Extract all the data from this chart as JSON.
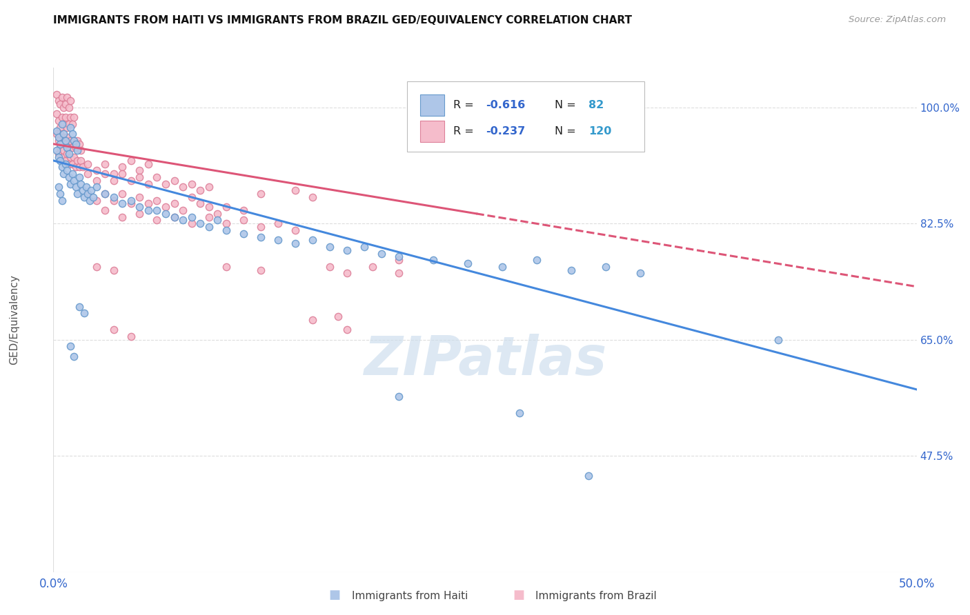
{
  "title": "IMMIGRANTS FROM HAITI VS IMMIGRANTS FROM BRAZIL GED/EQUIVALENCY CORRELATION CHART",
  "source": "Source: ZipAtlas.com",
  "ylabel": "GED/Equivalency",
  "ytick_labels": [
    "100.0%",
    "82.5%",
    "65.0%",
    "47.5%"
  ],
  "ytick_values": [
    1.0,
    0.825,
    0.65,
    0.475
  ],
  "xmin": 0.0,
  "xmax": 0.5,
  "ymin": 0.3,
  "ymax": 1.06,
  "haiti_color": "#aec6e8",
  "haiti_edge_color": "#6699cc",
  "brazil_color": "#f5bccb",
  "brazil_edge_color": "#dd8099",
  "haiti_line_color": "#4488dd",
  "brazil_line_color": "#dd5577",
  "watermark_text": "ZIPatlas",
  "watermark_color": "#ccdded",
  "haiti_scatter": [
    [
      0.002,
      0.965
    ],
    [
      0.003,
      0.955
    ],
    [
      0.004,
      0.945
    ],
    [
      0.005,
      0.975
    ],
    [
      0.006,
      0.96
    ],
    [
      0.007,
      0.95
    ],
    [
      0.008,
      0.94
    ],
    [
      0.009,
      0.93
    ],
    [
      0.01,
      0.97
    ],
    [
      0.011,
      0.96
    ],
    [
      0.012,
      0.95
    ],
    [
      0.013,
      0.945
    ],
    [
      0.014,
      0.935
    ],
    [
      0.002,
      0.935
    ],
    [
      0.003,
      0.925
    ],
    [
      0.004,
      0.92
    ],
    [
      0.005,
      0.91
    ],
    [
      0.006,
      0.9
    ],
    [
      0.007,
      0.915
    ],
    [
      0.008,
      0.905
    ],
    [
      0.009,
      0.895
    ],
    [
      0.01,
      0.885
    ],
    [
      0.011,
      0.9
    ],
    [
      0.012,
      0.89
    ],
    [
      0.013,
      0.88
    ],
    [
      0.014,
      0.87
    ],
    [
      0.015,
      0.895
    ],
    [
      0.016,
      0.885
    ],
    [
      0.017,
      0.875
    ],
    [
      0.018,
      0.865
    ],
    [
      0.019,
      0.88
    ],
    [
      0.02,
      0.87
    ],
    [
      0.021,
      0.86
    ],
    [
      0.022,
      0.875
    ],
    [
      0.023,
      0.865
    ],
    [
      0.025,
      0.88
    ],
    [
      0.003,
      0.88
    ],
    [
      0.004,
      0.87
    ],
    [
      0.005,
      0.86
    ],
    [
      0.03,
      0.87
    ],
    [
      0.035,
      0.865
    ],
    [
      0.04,
      0.855
    ],
    [
      0.045,
      0.86
    ],
    [
      0.05,
      0.85
    ],
    [
      0.055,
      0.845
    ],
    [
      0.06,
      0.845
    ],
    [
      0.065,
      0.84
    ],
    [
      0.07,
      0.835
    ],
    [
      0.075,
      0.83
    ],
    [
      0.08,
      0.835
    ],
    [
      0.085,
      0.825
    ],
    [
      0.09,
      0.82
    ],
    [
      0.095,
      0.83
    ],
    [
      0.1,
      0.815
    ],
    [
      0.11,
      0.81
    ],
    [
      0.12,
      0.805
    ],
    [
      0.13,
      0.8
    ],
    [
      0.14,
      0.795
    ],
    [
      0.15,
      0.8
    ],
    [
      0.16,
      0.79
    ],
    [
      0.17,
      0.785
    ],
    [
      0.18,
      0.79
    ],
    [
      0.19,
      0.78
    ],
    [
      0.2,
      0.775
    ],
    [
      0.22,
      0.77
    ],
    [
      0.24,
      0.765
    ],
    [
      0.26,
      0.76
    ],
    [
      0.28,
      0.77
    ],
    [
      0.3,
      0.755
    ],
    [
      0.32,
      0.76
    ],
    [
      0.34,
      0.75
    ],
    [
      0.015,
      0.7
    ],
    [
      0.018,
      0.69
    ],
    [
      0.01,
      0.64
    ],
    [
      0.012,
      0.625
    ],
    [
      0.2,
      0.565
    ],
    [
      0.27,
      0.54
    ],
    [
      0.42,
      0.65
    ],
    [
      0.31,
      0.445
    ]
  ],
  "brazil_scatter": [
    [
      0.002,
      1.02
    ],
    [
      0.003,
      1.01
    ],
    [
      0.004,
      1.005
    ],
    [
      0.005,
      1.015
    ],
    [
      0.006,
      1.0
    ],
    [
      0.007,
      1.005
    ],
    [
      0.008,
      1.015
    ],
    [
      0.009,
      1.0
    ],
    [
      0.01,
      1.01
    ],
    [
      0.002,
      0.99
    ],
    [
      0.003,
      0.98
    ],
    [
      0.004,
      0.97
    ],
    [
      0.005,
      0.985
    ],
    [
      0.006,
      0.975
    ],
    [
      0.007,
      0.985
    ],
    [
      0.008,
      0.97
    ],
    [
      0.009,
      0.975
    ],
    [
      0.01,
      0.985
    ],
    [
      0.011,
      0.975
    ],
    [
      0.012,
      0.985
    ],
    [
      0.002,
      0.96
    ],
    [
      0.003,
      0.95
    ],
    [
      0.004,
      0.96
    ],
    [
      0.005,
      0.945
    ],
    [
      0.006,
      0.955
    ],
    [
      0.007,
      0.945
    ],
    [
      0.008,
      0.955
    ],
    [
      0.009,
      0.94
    ],
    [
      0.01,
      0.95
    ],
    [
      0.011,
      0.94
    ],
    [
      0.012,
      0.95
    ],
    [
      0.013,
      0.94
    ],
    [
      0.014,
      0.95
    ],
    [
      0.015,
      0.945
    ],
    [
      0.016,
      0.935
    ],
    [
      0.003,
      0.93
    ],
    [
      0.004,
      0.94
    ],
    [
      0.005,
      0.925
    ],
    [
      0.006,
      0.935
    ],
    [
      0.007,
      0.92
    ],
    [
      0.008,
      0.93
    ],
    [
      0.009,
      0.915
    ],
    [
      0.01,
      0.925
    ],
    [
      0.011,
      0.915
    ],
    [
      0.012,
      0.925
    ],
    [
      0.013,
      0.91
    ],
    [
      0.014,
      0.92
    ],
    [
      0.015,
      0.91
    ],
    [
      0.016,
      0.92
    ],
    [
      0.017,
      0.91
    ],
    [
      0.02,
      0.915
    ],
    [
      0.025,
      0.905
    ],
    [
      0.03,
      0.915
    ],
    [
      0.035,
      0.9
    ],
    [
      0.04,
      0.91
    ],
    [
      0.045,
      0.92
    ],
    [
      0.05,
      0.905
    ],
    [
      0.055,
      0.915
    ],
    [
      0.02,
      0.9
    ],
    [
      0.025,
      0.89
    ],
    [
      0.03,
      0.9
    ],
    [
      0.035,
      0.89
    ],
    [
      0.04,
      0.9
    ],
    [
      0.045,
      0.89
    ],
    [
      0.05,
      0.895
    ],
    [
      0.055,
      0.885
    ],
    [
      0.06,
      0.895
    ],
    [
      0.065,
      0.885
    ],
    [
      0.07,
      0.89
    ],
    [
      0.075,
      0.88
    ],
    [
      0.08,
      0.885
    ],
    [
      0.085,
      0.875
    ],
    [
      0.09,
      0.88
    ],
    [
      0.02,
      0.87
    ],
    [
      0.025,
      0.86
    ],
    [
      0.03,
      0.87
    ],
    [
      0.035,
      0.86
    ],
    [
      0.04,
      0.87
    ],
    [
      0.045,
      0.855
    ],
    [
      0.05,
      0.865
    ],
    [
      0.055,
      0.855
    ],
    [
      0.06,
      0.86
    ],
    [
      0.065,
      0.85
    ],
    [
      0.07,
      0.855
    ],
    [
      0.075,
      0.845
    ],
    [
      0.085,
      0.855
    ],
    [
      0.09,
      0.85
    ],
    [
      0.095,
      0.84
    ],
    [
      0.1,
      0.85
    ],
    [
      0.11,
      0.845
    ],
    [
      0.08,
      0.865
    ],
    [
      0.12,
      0.87
    ],
    [
      0.14,
      0.875
    ],
    [
      0.15,
      0.865
    ],
    [
      0.03,
      0.845
    ],
    [
      0.04,
      0.835
    ],
    [
      0.05,
      0.84
    ],
    [
      0.06,
      0.83
    ],
    [
      0.07,
      0.835
    ],
    [
      0.08,
      0.825
    ],
    [
      0.09,
      0.835
    ],
    [
      0.1,
      0.825
    ],
    [
      0.11,
      0.83
    ],
    [
      0.12,
      0.82
    ],
    [
      0.13,
      0.825
    ],
    [
      0.14,
      0.815
    ],
    [
      0.025,
      0.76
    ],
    [
      0.035,
      0.755
    ],
    [
      0.1,
      0.76
    ],
    [
      0.12,
      0.755
    ],
    [
      0.16,
      0.76
    ],
    [
      0.17,
      0.75
    ],
    [
      0.185,
      0.76
    ],
    [
      0.2,
      0.75
    ],
    [
      0.15,
      0.68
    ],
    [
      0.165,
      0.685
    ],
    [
      0.035,
      0.665
    ],
    [
      0.045,
      0.655
    ],
    [
      0.17,
      0.665
    ],
    [
      0.2,
      0.77
    ]
  ],
  "haiti_line": {
    "x0": 0.0,
    "y0": 0.92,
    "x1": 0.5,
    "y1": 0.575
  },
  "brazil_line": {
    "x0": 0.0,
    "y0": 0.945,
    "x1": 0.245,
    "y1": 0.84
  },
  "brazil_line_ext": {
    "x0": 0.245,
    "y0": 0.84,
    "x1": 0.5,
    "y1": 0.73
  }
}
